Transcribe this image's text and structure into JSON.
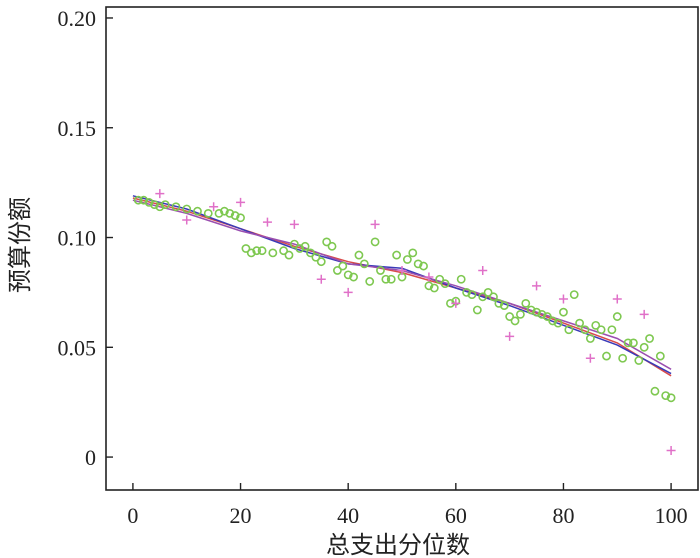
{
  "chart_data": {
    "type": "scatter",
    "xlabel": "总支出分位数",
    "ylabel": "预算份额",
    "xlim": [
      -5,
      105
    ],
    "ylim": [
      -0.015,
      0.205
    ],
    "x_ticks": [
      0,
      20,
      40,
      60,
      80,
      100
    ],
    "x_tick_labels": [
      "0",
      "20",
      "40",
      "60",
      "80",
      "100"
    ],
    "y_ticks": [
      0,
      0.05,
      0.1,
      0.15,
      0.2
    ],
    "y_tick_labels": [
      "0",
      "0.05",
      "0.10",
      "0.15",
      "0.20"
    ],
    "grid": false,
    "series": [
      {
        "marker": "circle",
        "color": "#7ec850",
        "x": [
          1,
          2,
          3,
          4,
          5,
          6,
          8,
          10,
          12,
          14,
          16,
          17,
          18,
          19,
          20,
          21,
          22,
          23,
          24,
          26,
          28,
          29,
          30,
          31,
          32,
          33,
          34,
          35,
          36,
          37,
          38,
          39,
          40,
          41,
          42,
          43,
          44,
          45,
          46,
          47,
          48,
          49,
          50,
          51,
          52,
          53,
          54,
          55,
          56,
          57,
          58,
          59,
          60,
          61,
          62,
          63,
          64,
          65,
          66,
          67,
          68,
          69,
          70,
          71,
          72,
          73,
          74,
          75,
          76,
          77,
          78,
          79,
          80,
          81,
          82,
          83,
          84,
          85,
          86,
          87,
          88,
          89,
          90,
          91,
          92,
          93,
          94,
          95,
          96,
          97,
          98,
          99,
          100
        ],
        "y": [
          0.117,
          0.117,
          0.116,
          0.115,
          0.114,
          0.115,
          0.114,
          0.113,
          0.112,
          0.111,
          0.111,
          0.112,
          0.111,
          0.11,
          0.109,
          0.095,
          0.093,
          0.094,
          0.094,
          0.093,
          0.094,
          0.092,
          0.097,
          0.095,
          0.096,
          0.093,
          0.091,
          0.089,
          0.098,
          0.096,
          0.085,
          0.087,
          0.083,
          0.082,
          0.092,
          0.088,
          0.08,
          0.098,
          0.085,
          0.081,
          0.081,
          0.092,
          0.082,
          0.09,
          0.093,
          0.088,
          0.087,
          0.078,
          0.077,
          0.081,
          0.079,
          0.07,
          0.071,
          0.081,
          0.075,
          0.074,
          0.067,
          0.073,
          0.075,
          0.073,
          0.07,
          0.069,
          0.064,
          0.062,
          0.065,
          0.07,
          0.067,
          0.066,
          0.065,
          0.064,
          0.062,
          0.061,
          0.066,
          0.058,
          0.074,
          0.061,
          0.058,
          0.054,
          0.06,
          0.058,
          0.046,
          0.058,
          0.064,
          0.045,
          0.052,
          0.052,
          0.044,
          0.05,
          0.054,
          0.03,
          0.046,
          0.028,
          0.027
        ]
      },
      {
        "marker": "plus",
        "color": "#e070c8",
        "x": [
          5,
          10,
          15,
          20,
          25,
          30,
          35,
          40,
          45,
          50,
          55,
          60,
          65,
          70,
          75,
          80,
          85,
          90,
          95,
          100
        ],
        "y": [
          0.12,
          0.108,
          0.114,
          0.116,
          0.107,
          0.106,
          0.081,
          0.075,
          0.106,
          0.085,
          0.082,
          0.07,
          0.085,
          0.055,
          0.078,
          0.072,
          0.045,
          0.072,
          0.065,
          0.003
        ]
      },
      {
        "name": "",
        "marker": "line",
        "color": "#d94a4a",
        "x": [
          0,
          10,
          20,
          30,
          40,
          50,
          60,
          70,
          80,
          90,
          100
        ],
        "y": [
          0.118,
          0.112,
          0.104,
          0.096,
          0.089,
          0.084,
          0.077,
          0.07,
          0.061,
          0.052,
          0.037
        ]
      },
      {
        "marker": "line",
        "color": "#3a3ab8",
        "x": [
          0,
          10,
          20,
          30,
          40,
          50,
          60,
          70,
          80,
          90,
          100
        ],
        "y": [
          0.119,
          0.113,
          0.104,
          0.095,
          0.088,
          0.086,
          0.077,
          0.069,
          0.06,
          0.051,
          0.038
        ]
      },
      {
        "marker": "line",
        "color": "#9a4fb0",
        "x": [
          0,
          10,
          20,
          30,
          40,
          50,
          60,
          70,
          80,
          90,
          100
        ],
        "y": [
          0.117,
          0.111,
          0.103,
          0.097,
          0.088,
          0.085,
          0.078,
          0.07,
          0.062,
          0.054,
          0.04
        ]
      }
    ]
  }
}
